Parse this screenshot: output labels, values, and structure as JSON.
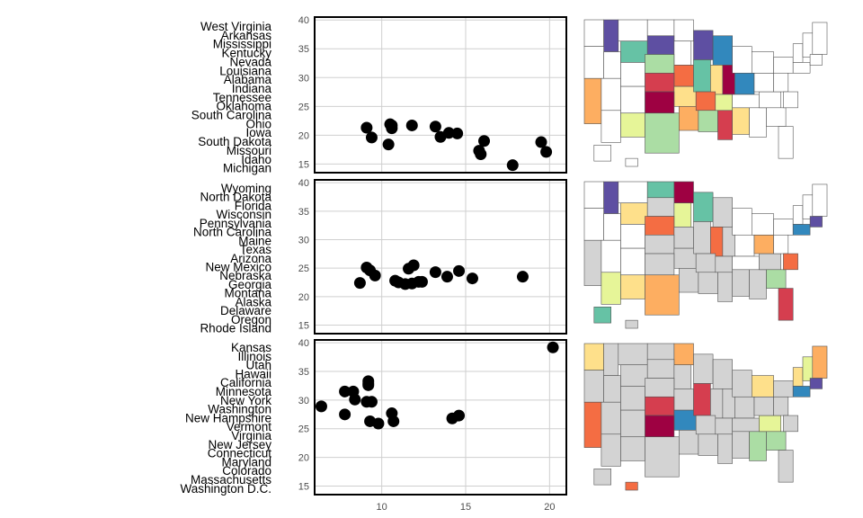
{
  "chart_data": [
    {
      "type": "scatter",
      "panel": "top",
      "labels": [
        "West Virginia",
        "Arkansas",
        "Mississippi",
        "Kentucky",
        "Nevada",
        "Louisiana",
        "Alabama",
        "Indiana",
        "Tennessee",
        "Oklahoma",
        "South Carolina",
        "Ohio",
        "Iowa",
        "South Dakota",
        "Missouri",
        "Idaho",
        "Michigan"
      ],
      "x": [
        9.1,
        9.4,
        10.4,
        10.5,
        10.6,
        10.6,
        11.8,
        13.2,
        13.5,
        14.0,
        14.5,
        15.8,
        15.9,
        16.1,
        17.8,
        19.5,
        19.8
      ],
      "y": [
        21.3,
        19.6,
        18.4,
        21.9,
        21.7,
        21.2,
        21.7,
        21.5,
        19.7,
        20.4,
        20.3,
        17.3,
        16.7,
        19.0,
        14.8,
        18.8,
        17.1
      ],
      "xlim": [
        6,
        21
      ],
      "ylim": [
        13.5,
        40.5
      ],
      "yticks": [
        15,
        20,
        25,
        30,
        35,
        40
      ],
      "grid": true,
      "map_colors": [
        "#9e0142",
        "#d53e4f",
        "#f46d43",
        "#fdae61",
        "#fee08b",
        "#e6f598",
        "#abdda4",
        "#66c2a5",
        "#3288bd",
        "#5e4fa2"
      ]
    },
    {
      "type": "scatter",
      "panel": "middle",
      "labels": [
        "Wyoming",
        "North Dakota",
        "Florida",
        "Wisconsin",
        "Pennsylvania",
        "North Carolina",
        "Maine",
        "Texas",
        "Arizona",
        "New Mexico",
        "Nebraska",
        "Georgia",
        "Montana",
        "Alaska",
        "Delaware",
        "Oregon",
        "Rhode Island"
      ],
      "x": [
        8.7,
        9.1,
        9.3,
        9.6,
        10.8,
        11.0,
        11.4,
        11.6,
        11.8,
        11.9,
        12.2,
        12.4,
        13.2,
        13.9,
        14.6,
        15.4,
        18.4
      ],
      "y": [
        22.4,
        25.1,
        24.6,
        23.7,
        22.8,
        22.5,
        22.2,
        24.9,
        22.3,
        25.5,
        22.6,
        22.6,
        24.3,
        23.5,
        24.5,
        23.2,
        23.5
      ],
      "xlim": [
        6,
        21
      ],
      "ylim": [
        13.5,
        40.5
      ],
      "yticks": [
        15,
        20,
        25,
        30,
        35,
        40
      ],
      "grid": true,
      "map_colors": [
        "#9e0142",
        "#d53e4f",
        "#f46d43",
        "#fdae61",
        "#fee08b",
        "#e6f598",
        "#abdda4",
        "#66c2a5",
        "#3288bd",
        "#5e4fa2"
      ]
    },
    {
      "type": "scatter",
      "panel": "bottom",
      "labels": [
        "Kansas",
        "Illinois",
        "Utah",
        "Hawaii",
        "California",
        "Minnesota",
        "New York",
        "Washington",
        "New Hampshire",
        "Vermont",
        "Virginia",
        "New Jersey",
        "Connecticut",
        "Maryland",
        "Colorado",
        "Massachusetts",
        "Washington D.C."
      ],
      "x": [
        6.4,
        7.8,
        7.8,
        8.3,
        8.4,
        9.1,
        9.2,
        9.2,
        9.3,
        9.4,
        9.8,
        10.6,
        10.7,
        14.2,
        14.6,
        20.2,
        9.2
      ],
      "y": [
        28.9,
        31.5,
        27.5,
        31.5,
        30.1,
        29.7,
        32.6,
        33.3,
        26.3,
        29.7,
        25.9,
        27.7,
        26.3,
        26.8,
        27.3,
        39.2,
        32.9
      ],
      "xlim": [
        6,
        21
      ],
      "ylim": [
        13.5,
        40.5
      ],
      "xticks": [
        10,
        15,
        20
      ],
      "yticks": [
        15,
        20,
        25,
        30,
        35,
        40
      ],
      "grid": true,
      "map_colors": [
        "#9e0142",
        "#d53e4f",
        "#f46d43",
        "#fdae61",
        "#fee08b",
        "#e6f598",
        "#abdda4",
        "#66c2a5",
        "#3288bd",
        "#5e4fa2"
      ]
    }
  ],
  "map_style": {
    "fill_unhighlighted": "#d3d3d3",
    "fill_blank": "#ffffff",
    "stroke": "#555555"
  }
}
